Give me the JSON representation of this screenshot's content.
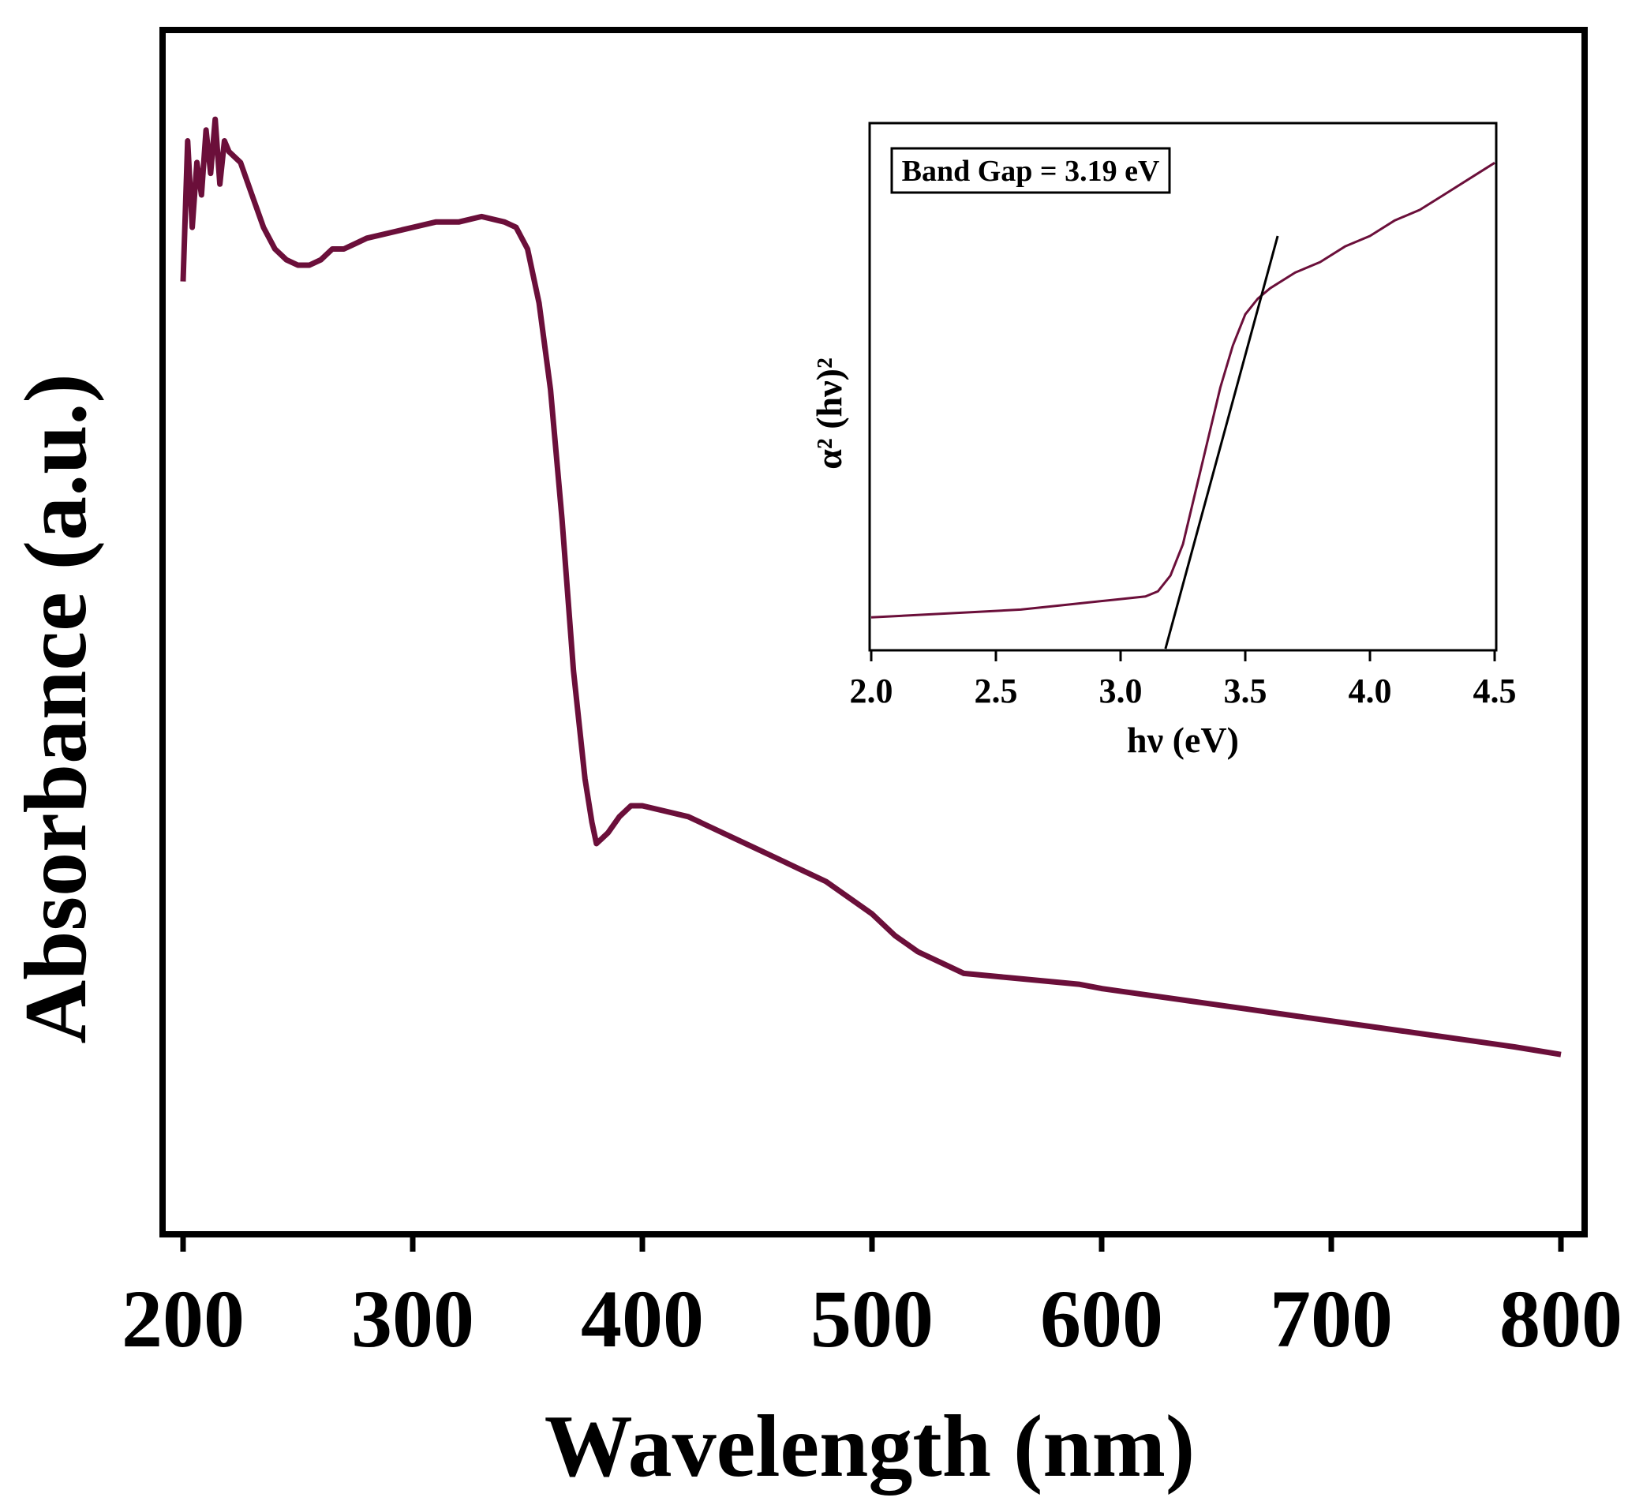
{
  "chart_data": [
    {
      "type": "line",
      "xlabel": "Wavelength (nm)",
      "ylabel": "Absorbance (a.u.)",
      "xlim": [
        200,
        800
      ],
      "ylim": [
        0,
        1
      ],
      "xticks": [
        "200",
        "300",
        "400",
        "500",
        "600",
        "700",
        "800"
      ],
      "yticks_shown": false,
      "grid": false,
      "legend": "none",
      "color": "#6b0f3a",
      "series": [
        {
          "x": [
            200,
            202,
            204,
            206,
            208,
            210,
            212,
            214,
            216,
            218,
            220,
            225,
            230,
            235,
            240,
            245,
            250,
            255,
            260,
            265,
            270,
            275,
            280,
            290,
            300,
            310,
            320,
            330,
            340,
            345,
            350,
            355,
            360,
            365,
            370,
            375,
            378,
            380,
            385,
            390,
            395,
            400,
            410,
            420,
            430,
            440,
            450,
            460,
            470,
            480,
            490,
            500,
            510,
            520,
            530,
            540,
            550,
            560,
            570,
            580,
            590,
            600,
            620,
            640,
            660,
            680,
            700,
            720,
            740,
            760,
            780,
            800
          ],
          "y": [
            0.82,
            0.95,
            0.87,
            0.93,
            0.9,
            0.96,
            0.92,
            0.97,
            0.91,
            0.95,
            0.94,
            0.93,
            0.9,
            0.87,
            0.85,
            0.84,
            0.835,
            0.835,
            0.84,
            0.85,
            0.85,
            0.855,
            0.86,
            0.865,
            0.87,
            0.875,
            0.875,
            0.88,
            0.875,
            0.87,
            0.85,
            0.8,
            0.72,
            0.6,
            0.46,
            0.36,
            0.32,
            0.3,
            0.31,
            0.325,
            0.335,
            0.335,
            0.33,
            0.325,
            0.315,
            0.305,
            0.295,
            0.285,
            0.275,
            0.265,
            0.25,
            0.235,
            0.215,
            0.2,
            0.19,
            0.18,
            0.178,
            0.176,
            0.174,
            0.172,
            0.17,
            0.166,
            0.16,
            0.154,
            0.148,
            0.142,
            0.136,
            0.13,
            0.124,
            0.118,
            0.112,
            0.105
          ]
        }
      ]
    },
    {
      "type": "line",
      "xlabel": "hν (eV)",
      "ylabel": "α² (hν)²",
      "xlim": [
        2.0,
        4.5
      ],
      "ylim": [
        0,
        1
      ],
      "xticks": [
        "2.0",
        "2.5",
        "3.0",
        "3.5",
        "4.0",
        "4.5"
      ],
      "yticks_shown": false,
      "grid": false,
      "legend": "none",
      "annotation": "Band Gap = 3.19 eV",
      "band_gap_ev": 3.19,
      "color": "#6b0f3a",
      "series": [
        {
          "x": [
            2.0,
            2.2,
            2.4,
            2.6,
            2.8,
            3.0,
            3.1,
            3.15,
            3.2,
            3.25,
            3.3,
            3.35,
            3.4,
            3.45,
            3.5,
            3.55,
            3.6,
            3.7,
            3.8,
            3.9,
            4.0,
            4.1,
            4.2,
            4.3,
            4.4,
            4.5
          ],
          "y": [
            0.06,
            0.065,
            0.07,
            0.075,
            0.085,
            0.095,
            0.1,
            0.11,
            0.14,
            0.2,
            0.3,
            0.4,
            0.5,
            0.58,
            0.64,
            0.67,
            0.69,
            0.72,
            0.74,
            0.77,
            0.79,
            0.82,
            0.84,
            0.87,
            0.9,
            0.93
          ]
        },
        {
          "x": [
            3.18,
            3.63
          ],
          "y": [
            0.0,
            0.79
          ]
        }
      ]
    }
  ]
}
